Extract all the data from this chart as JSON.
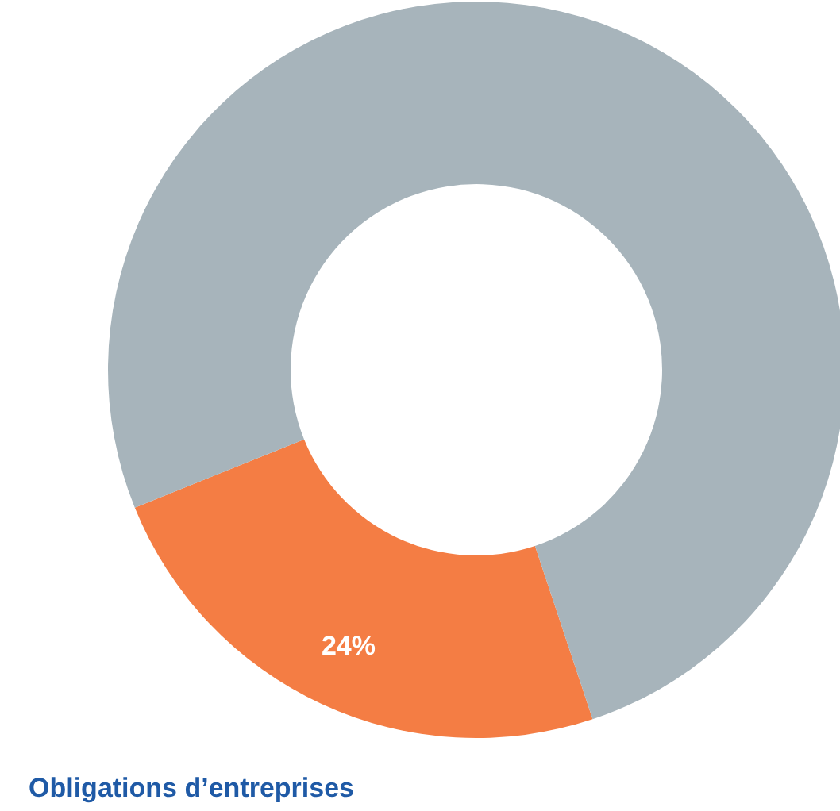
{
  "chart_data": {
    "type": "donut",
    "title": "Obligations d’entreprises",
    "categories": [
      null,
      null
    ],
    "values": [
      24,
      76
    ],
    "colors": [
      "#f47d44",
      "#a7b4bb"
    ],
    "value_labels": [
      "24%",
      null
    ]
  }
}
